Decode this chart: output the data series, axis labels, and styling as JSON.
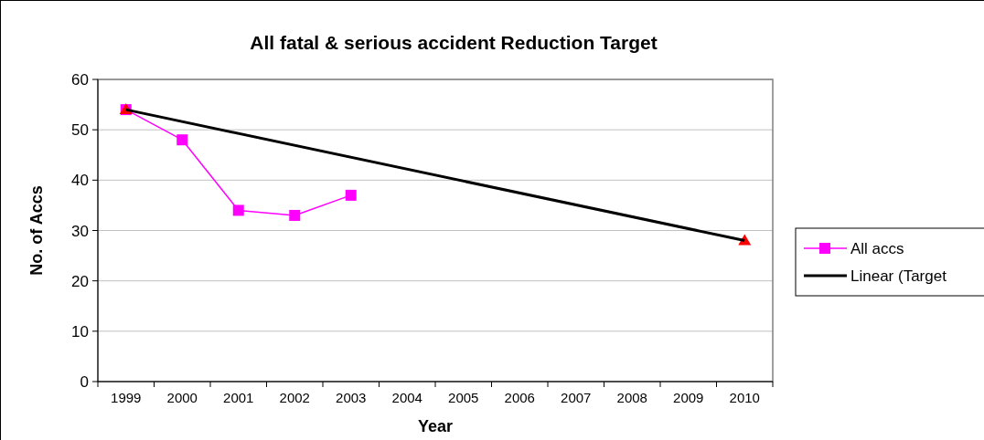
{
  "chart_data": {
    "type": "line",
    "title": "All fatal & serious accident Reduction Target",
    "xlabel": "Year",
    "ylabel": "No. of Accs",
    "categories": [
      "1999",
      "2000",
      "2001",
      "2002",
      "2003",
      "2004",
      "2005",
      "2006",
      "2007",
      "2008",
      "2009",
      "2010"
    ],
    "series": [
      {
        "name": "All accs",
        "color": "#ff00ff",
        "marker": "square",
        "values": [
          54,
          48,
          34,
          33,
          37,
          null,
          null,
          null,
          null,
          null,
          null,
          null
        ]
      },
      {
        "type": "scatter",
        "color": "#ff0000",
        "marker": "triangle",
        "values": [
          54,
          null,
          null,
          null,
          null,
          null,
          null,
          null,
          null,
          null,
          null,
          28
        ]
      },
      {
        "name": "Linear (Target",
        "color": "#000000",
        "marker": "none",
        "values": [
          54,
          null,
          null,
          null,
          null,
          null,
          null,
          null,
          null,
          null,
          null,
          28
        ]
      }
    ],
    "ylim": [
      0,
      60
    ],
    "yticks": [
      0,
      10,
      20,
      30,
      40,
      50,
      60
    ],
    "grid": "y",
    "legend": "right"
  }
}
